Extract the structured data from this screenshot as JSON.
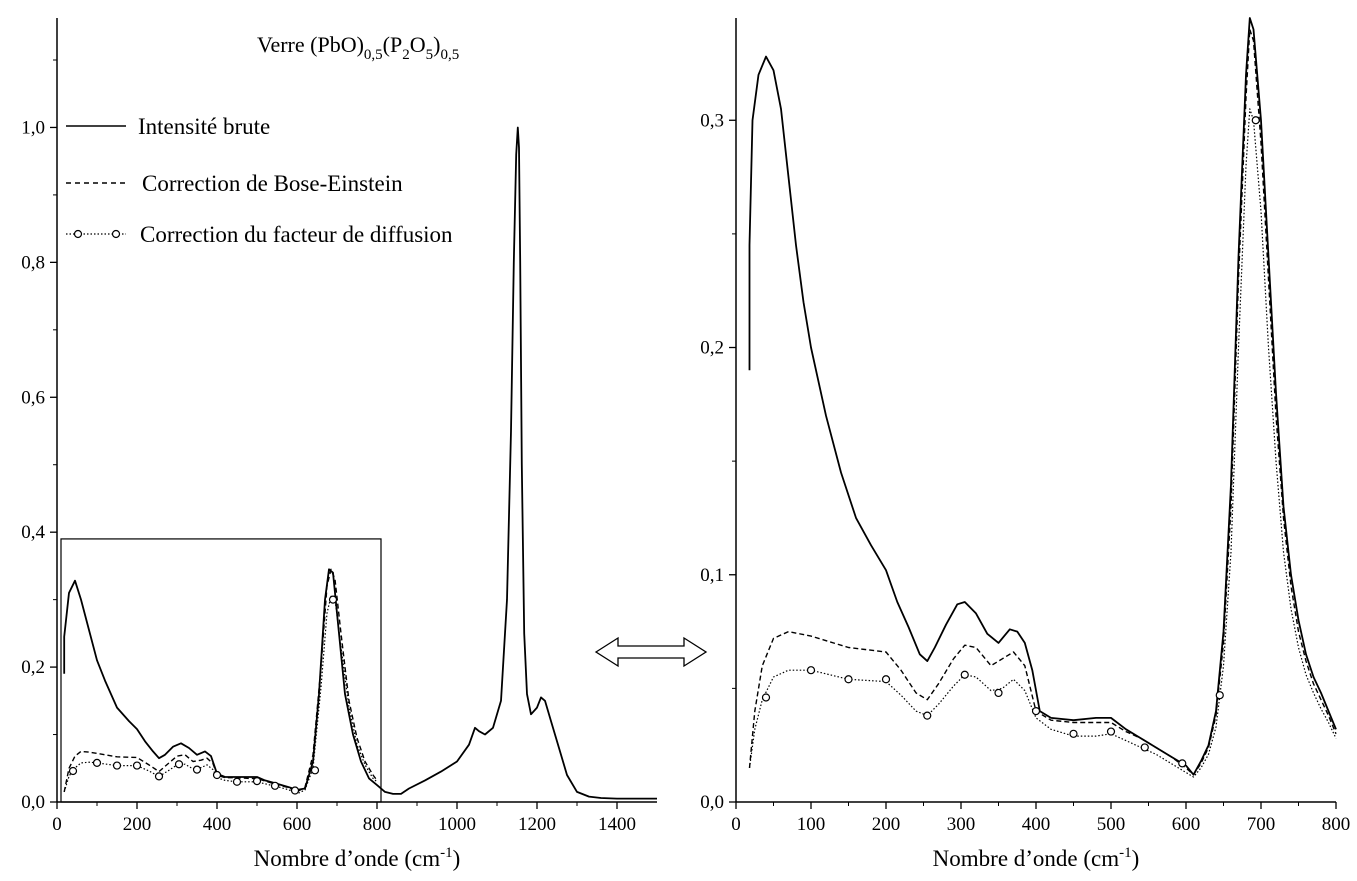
{
  "chart_data": [
    {
      "type": "line",
      "title": "Verre (PbO)0,5(P2O5)0,5",
      "title_parts": {
        "base1": "Verre (PbO)",
        "sub1": "0,5",
        "base2": "(P",
        "sub2": "2",
        "base3": "O",
        "sub3": "5",
        "base4": ")",
        "sub4": "0,5"
      },
      "xlabel": "Nombre d’onde (cm",
      "xlabel_exp": "-1",
      "xlabel_close": ")",
      "ylabel": "",
      "xlim": [
        0,
        1500
      ],
      "ylim": [
        0,
        1.1
      ],
      "xticks": [
        0,
        200,
        400,
        600,
        800,
        1000,
        1200,
        1400
      ],
      "xtick_labels": [
        "0",
        "200",
        "400",
        "600",
        "800",
        "1000",
        "1200",
        "1400"
      ],
      "yticks": [
        0.0,
        0.2,
        0.4,
        0.6,
        0.8,
        1.0
      ],
      "ytick_labels": [
        "0,0",
        "0,2",
        "0,4",
        "0,6",
        "0,8",
        "1,0"
      ],
      "legend_position": "top-left",
      "inset_box": {
        "x": [
          10,
          810
        ],
        "y": [
          0,
          0.39
        ]
      },
      "series": [
        {
          "name": "Intensité brute",
          "style": "solid",
          "x": [
            18,
            18,
            30,
            45,
            60,
            80,
            100,
            120,
            150,
            180,
            200,
            220,
            240,
            255,
            270,
            290,
            310,
            330,
            350,
            370,
            385,
            400,
            420,
            450,
            480,
            500,
            520,
            550,
            580,
            600,
            620,
            640,
            655,
            670,
            680,
            690,
            700,
            720,
            740,
            760,
            780,
            800,
            820,
            840,
            860,
            880,
            920,
            960,
            1000,
            1030,
            1045,
            1055,
            1070,
            1090,
            1110,
            1125,
            1135,
            1142,
            1148,
            1152,
            1155,
            1158,
            1162,
            1168,
            1175,
            1185,
            1200,
            1210,
            1220,
            1235,
            1255,
            1275,
            1300,
            1330,
            1360,
            1400,
            1450,
            1500
          ],
          "y": [
            0.19,
            0.245,
            0.31,
            0.328,
            0.3,
            0.255,
            0.21,
            0.18,
            0.14,
            0.12,
            0.108,
            0.09,
            0.075,
            0.065,
            0.07,
            0.082,
            0.087,
            0.08,
            0.07,
            0.075,
            0.068,
            0.042,
            0.037,
            0.037,
            0.037,
            0.037,
            0.032,
            0.027,
            0.022,
            0.018,
            0.02,
            0.06,
            0.16,
            0.3,
            0.345,
            0.34,
            0.28,
            0.16,
            0.1,
            0.06,
            0.035,
            0.025,
            0.015,
            0.012,
            0.012,
            0.02,
            0.032,
            0.045,
            0.06,
            0.085,
            0.11,
            0.105,
            0.1,
            0.11,
            0.15,
            0.3,
            0.55,
            0.8,
            0.96,
            1.0,
            0.97,
            0.8,
            0.5,
            0.25,
            0.16,
            0.13,
            0.14,
            0.155,
            0.15,
            0.12,
            0.08,
            0.04,
            0.015,
            0.008,
            0.006,
            0.005,
            0.005,
            0.005
          ]
        },
        {
          "name": "Correction de Bose-Einstein",
          "style": "dashed",
          "x": [
            18,
            30,
            45,
            60,
            80,
            100,
            150,
            200,
            230,
            255,
            280,
            300,
            320,
            340,
            360,
            375,
            390,
            400,
            420,
            450,
            480,
            500,
            520,
            550,
            580,
            600,
            620,
            640,
            660,
            675,
            685,
            695,
            710,
            730,
            750,
            770,
            790,
            800
          ],
          "y": [
            0.015,
            0.05,
            0.068,
            0.075,
            0.074,
            0.072,
            0.067,
            0.066,
            0.055,
            0.045,
            0.058,
            0.068,
            0.07,
            0.06,
            0.062,
            0.065,
            0.057,
            0.04,
            0.036,
            0.036,
            0.035,
            0.035,
            0.031,
            0.026,
            0.021,
            0.015,
            0.022,
            0.07,
            0.2,
            0.32,
            0.345,
            0.33,
            0.25,
            0.15,
            0.095,
            0.06,
            0.04,
            0.032
          ]
        },
        {
          "name": "Correction du facteur de diffusion",
          "style": "dotted-circles",
          "x": [
            18,
            30,
            40,
            60,
            80,
            100,
            150,
            200,
            230,
            255,
            280,
            300,
            320,
            340,
            360,
            375,
            390,
            400,
            420,
            450,
            480,
            500,
            520,
            550,
            580,
            600,
            620,
            640,
            660,
            675,
            685,
            695,
            710,
            730,
            750,
            770,
            790,
            800
          ],
          "y": [
            0.015,
            0.038,
            0.048,
            0.058,
            0.059,
            0.058,
            0.054,
            0.054,
            0.046,
            0.038,
            0.047,
            0.055,
            0.056,
            0.049,
            0.051,
            0.055,
            0.048,
            0.036,
            0.032,
            0.03,
            0.03,
            0.03,
            0.027,
            0.023,
            0.018,
            0.012,
            0.018,
            0.05,
            0.17,
            0.28,
            0.305,
            0.3,
            0.23,
            0.14,
            0.085,
            0.055,
            0.035,
            0.03
          ],
          "marker_x": [
            40,
            100,
            150,
            200,
            255,
            305,
            350,
            400,
            450,
            500,
            545,
            595,
            645,
            690
          ],
          "marker_y": [
            0.046,
            0.058,
            0.054,
            0.054,
            0.038,
            0.056,
            0.048,
            0.04,
            0.03,
            0.031,
            0.024,
            0.017,
            0.047,
            0.3
          ]
        }
      ]
    },
    {
      "type": "line",
      "title": "",
      "xlabel": "Nombre d’onde (cm",
      "xlabel_exp": "-1",
      "xlabel_close": ")",
      "ylabel": "",
      "xlim": [
        0,
        800
      ],
      "ylim": [
        0,
        0.345
      ],
      "xticks": [
        0,
        100,
        200,
        300,
        400,
        500,
        600,
        700,
        800
      ],
      "xtick_labels": [
        "0",
        "100",
        "200",
        "300",
        "400",
        "500",
        "600",
        "700",
        "800"
      ],
      "yticks": [
        0.0,
        0.1,
        0.2,
        0.3
      ],
      "ytick_labels": [
        "0,0",
        "0,1",
        "0,2",
        "0,3"
      ],
      "series": [
        {
          "name": "Intensité brute",
          "style": "solid",
          "x": [
            18,
            18,
            22,
            30,
            40,
            50,
            60,
            70,
            80,
            90,
            100,
            120,
            140,
            160,
            180,
            200,
            215,
            230,
            245,
            255,
            265,
            280,
            295,
            305,
            320,
            335,
            350,
            365,
            375,
            385,
            395,
            405,
            420,
            450,
            480,
            500,
            520,
            540,
            560,
            580,
            600,
            610,
            620,
            630,
            640,
            650,
            660,
            670,
            680,
            685,
            690,
            700,
            710,
            720,
            730,
            740,
            750,
            760,
            770,
            780,
            790,
            800
          ],
          "y": [
            0.19,
            0.245,
            0.3,
            0.32,
            0.328,
            0.322,
            0.305,
            0.275,
            0.245,
            0.22,
            0.2,
            0.17,
            0.145,
            0.125,
            0.113,
            0.102,
            0.088,
            0.077,
            0.065,
            0.062,
            0.068,
            0.078,
            0.087,
            0.088,
            0.083,
            0.074,
            0.07,
            0.076,
            0.075,
            0.07,
            0.058,
            0.04,
            0.037,
            0.036,
            0.037,
            0.037,
            0.032,
            0.028,
            0.024,
            0.02,
            0.016,
            0.012,
            0.018,
            0.025,
            0.04,
            0.075,
            0.14,
            0.24,
            0.32,
            0.345,
            0.34,
            0.3,
            0.24,
            0.18,
            0.13,
            0.1,
            0.08,
            0.065,
            0.055,
            0.048,
            0.04,
            0.032
          ]
        },
        {
          "name": "Correction de Bose-Einstein",
          "style": "dashed",
          "x": [
            18,
            25,
            35,
            50,
            70,
            100,
            150,
            200,
            220,
            240,
            255,
            270,
            290,
            305,
            320,
            340,
            355,
            370,
            385,
            400,
            420,
            450,
            480,
            500,
            520,
            540,
            560,
            580,
            600,
            610,
            620,
            630,
            640,
            650,
            660,
            670,
            680,
            685,
            690,
            700,
            710,
            720,
            730,
            740,
            750,
            760,
            770,
            780,
            790,
            800
          ],
          "y": [
            0.015,
            0.04,
            0.06,
            0.072,
            0.075,
            0.073,
            0.068,
            0.066,
            0.058,
            0.048,
            0.045,
            0.052,
            0.063,
            0.069,
            0.068,
            0.06,
            0.063,
            0.066,
            0.06,
            0.04,
            0.036,
            0.035,
            0.035,
            0.035,
            0.031,
            0.028,
            0.024,
            0.02,
            0.015,
            0.012,
            0.017,
            0.024,
            0.038,
            0.07,
            0.13,
            0.23,
            0.31,
            0.34,
            0.335,
            0.29,
            0.23,
            0.17,
            0.125,
            0.095,
            0.075,
            0.062,
            0.052,
            0.045,
            0.038,
            0.03
          ]
        },
        {
          "name": "Correction du facteur de diffusion",
          "style": "dotted-circles",
          "x": [
            18,
            25,
            35,
            50,
            70,
            100,
            150,
            200,
            220,
            240,
            255,
            270,
            290,
            305,
            320,
            340,
            355,
            370,
            385,
            400,
            420,
            450,
            480,
            500,
            520,
            540,
            560,
            580,
            600,
            610,
            620,
            630,
            640,
            650,
            660,
            670,
            680,
            685,
            690,
            700,
            710,
            720,
            730,
            740,
            750,
            760,
            770,
            780,
            790,
            800
          ],
          "y": [
            0.015,
            0.032,
            0.045,
            0.055,
            0.058,
            0.058,
            0.054,
            0.053,
            0.047,
            0.04,
            0.038,
            0.043,
            0.051,
            0.056,
            0.055,
            0.049,
            0.05,
            0.054,
            0.049,
            0.037,
            0.032,
            0.029,
            0.029,
            0.03,
            0.027,
            0.024,
            0.021,
            0.017,
            0.013,
            0.011,
            0.015,
            0.021,
            0.033,
            0.06,
            0.11,
            0.2,
            0.28,
            0.305,
            0.3,
            0.26,
            0.2,
            0.15,
            0.11,
            0.085,
            0.068,
            0.056,
            0.048,
            0.041,
            0.035,
            0.028
          ],
          "marker_x": [
            40,
            100,
            150,
            200,
            255,
            305,
            350,
            400,
            450,
            500,
            545,
            595,
            645,
            693
          ],
          "marker_y": [
            0.046,
            0.058,
            0.054,
            0.054,
            0.038,
            0.056,
            0.048,
            0.04,
            0.03,
            0.031,
            0.024,
            0.017,
            0.047,
            0.3
          ]
        }
      ]
    }
  ]
}
